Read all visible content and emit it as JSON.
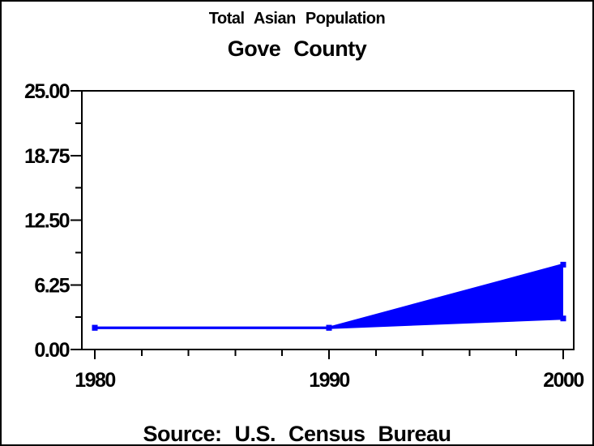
{
  "window": {
    "background": "#FFFFFF",
    "border_color": "#000000"
  },
  "header": {
    "title": "Total Asian Population",
    "subtitle": "Gove County"
  },
  "footer": {
    "source_note": "Source: U.S. Census Bureau"
  },
  "chart_data": {
    "type": "area",
    "subtype": "band-range-fill",
    "title": "Total Asian Population",
    "subtitle": "Gove County",
    "footnote": "Source: U.S. Census Bureau",
    "xlabel": "",
    "ylabel": "",
    "x": [
      1980,
      1990,
      2000
    ],
    "series": [
      {
        "name": "lower-bound",
        "values": [
          2.1,
          2.1,
          3.0
        ]
      },
      {
        "name": "upper-bound",
        "values": [
          2.1,
          2.1,
          8.2
        ]
      }
    ],
    "band_fill_between": [
      "lower-bound",
      "upper-bound"
    ],
    "band_color": "#0000FF",
    "line_color": "#0000FF",
    "marker": "square",
    "ylim": [
      0,
      25
    ],
    "y_ticks": {
      "major_values": [
        0,
        6.25,
        12.5,
        18.75,
        25
      ],
      "major_labels": [
        "0.00",
        "6.25",
        "12.50",
        "18.75",
        "25.00"
      ],
      "minor_values": [
        3.125,
        9.375,
        15.625,
        21.875
      ]
    },
    "x_ticks": {
      "major_values": [
        1980,
        1990,
        2000
      ],
      "major_labels": [
        "1980",
        "1990",
        "2000"
      ],
      "minor_values": [
        1982,
        1984,
        1986,
        1988,
        1992,
        1994,
        1996,
        1998
      ]
    },
    "grid": false,
    "legend": "none",
    "frame": true,
    "axis_color": "#000000"
  }
}
